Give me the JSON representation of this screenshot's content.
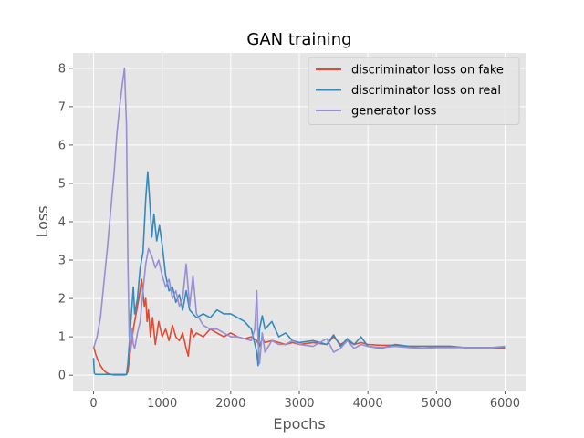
{
  "chart_data": {
    "type": "line",
    "title": "GAN training",
    "xlabel": "Epochs",
    "ylabel": "Loss",
    "xlim": [
      -300,
      6300
    ],
    "ylim": [
      -0.4,
      8.4
    ],
    "xticks": [
      0,
      1000,
      2000,
      3000,
      4000,
      5000,
      6000
    ],
    "yticks": [
      0,
      1,
      2,
      3,
      4,
      5,
      6,
      7,
      8
    ],
    "grid": true,
    "legend": "top-right",
    "background": "#e5e5e5",
    "series": [
      {
        "name": "discriminator loss on fake",
        "color": "#e24a33",
        "x": [
          0,
          30,
          60,
          100,
          150,
          200,
          250,
          300,
          350,
          400,
          450,
          480,
          500,
          520,
          550,
          580,
          620,
          660,
          700,
          740,
          760,
          780,
          800,
          830,
          860,
          900,
          950,
          1000,
          1050,
          1100,
          1150,
          1200,
          1250,
          1300,
          1350,
          1380,
          1420,
          1460,
          1500,
          1600,
          1700,
          1800,
          1900,
          2000,
          2100,
          2200,
          2300,
          2380,
          2420,
          2460,
          2500,
          2600,
          2700,
          2800,
          2900,
          3000,
          3200,
          3400,
          3500,
          3600,
          3700,
          3800,
          3900,
          4000,
          4200,
          4400,
          4600,
          4800,
          5000,
          5200,
          5400,
          5600,
          5800,
          6000
        ],
        "y": [
          0.75,
          0.55,
          0.4,
          0.25,
          0.12,
          0.05,
          0.02,
          0.01,
          0.01,
          0.01,
          0.01,
          0.02,
          0.1,
          0.4,
          0.8,
          1.2,
          1.6,
          2.0,
          2.5,
          1.8,
          2.0,
          1.4,
          1.7,
          1.0,
          1.5,
          0.8,
          1.4,
          1.0,
          1.2,
          0.9,
          1.3,
          1.0,
          0.9,
          1.1,
          0.7,
          0.5,
          1.2,
          1.0,
          1.1,
          1.0,
          1.2,
          1.1,
          1.0,
          1.1,
          1.0,
          0.95,
          1.0,
          0.9,
          0.75,
          0.95,
          0.85,
          0.9,
          0.85,
          0.8,
          0.85,
          0.8,
          0.85,
          0.8,
          1.0,
          0.8,
          0.9,
          0.8,
          0.85,
          0.8,
          0.78,
          0.78,
          0.75,
          0.75,
          0.75,
          0.75,
          0.72,
          0.72,
          0.72,
          0.7
        ]
      },
      {
        "name": "discriminator loss on real",
        "color": "#348abd",
        "x": [
          0,
          10,
          30,
          100,
          200,
          300,
          400,
          480,
          500,
          520,
          540,
          560,
          580,
          600,
          640,
          680,
          720,
          760,
          790,
          820,
          850,
          880,
          920,
          960,
          1000,
          1050,
          1100,
          1150,
          1200,
          1250,
          1300,
          1350,
          1400,
          1450,
          1500,
          1600,
          1700,
          1800,
          1900,
          2000,
          2100,
          2200,
          2300,
          2380,
          2400,
          2420,
          2460,
          2500,
          2600,
          2700,
          2800,
          2900,
          3000,
          3200,
          3400,
          3500,
          3600,
          3700,
          3800,
          3900,
          4000,
          4200,
          4400,
          4600,
          4800,
          5000,
          5200,
          5400,
          5600,
          5800,
          6000
        ],
        "y": [
          0.45,
          0.05,
          0.02,
          0.02,
          0.02,
          0.02,
          0.02,
          0.02,
          0.3,
          0.8,
          1.3,
          1.8,
          2.3,
          1.6,
          2.0,
          2.8,
          3.2,
          4.6,
          5.3,
          4.5,
          3.6,
          4.2,
          3.5,
          3.9,
          3.4,
          2.6,
          2.2,
          2.3,
          1.9,
          2.1,
          1.7,
          2.2,
          1.7,
          1.6,
          1.5,
          1.6,
          1.5,
          1.7,
          1.6,
          1.6,
          1.5,
          1.4,
          1.2,
          0.6,
          0.25,
          1.2,
          1.55,
          1.2,
          1.4,
          1.0,
          1.1,
          0.9,
          0.85,
          0.9,
          0.8,
          1.05,
          0.75,
          0.95,
          0.8,
          1.0,
          0.75,
          0.7,
          0.8,
          0.75,
          0.75,
          0.75,
          0.75,
          0.72,
          0.72,
          0.72,
          0.72
        ]
      },
      {
        "name": "generator loss",
        "color": "#988ed5",
        "x": [
          0,
          50,
          100,
          150,
          200,
          250,
          300,
          340,
          380,
          420,
          450,
          480,
          500,
          520,
          540,
          560,
          580,
          600,
          640,
          680,
          720,
          760,
          800,
          850,
          900,
          950,
          1000,
          1050,
          1100,
          1150,
          1200,
          1250,
          1300,
          1350,
          1400,
          1450,
          1500,
          1600,
          1700,
          1800,
          1900,
          2000,
          2100,
          2200,
          2300,
          2350,
          2380,
          2400,
          2420,
          2460,
          2500,
          2600,
          2700,
          2800,
          2900,
          3000,
          3200,
          3400,
          3500,
          3600,
          3700,
          3800,
          3900,
          4000,
          4200,
          4400,
          4600,
          4800,
          5000,
          5200,
          5400,
          5600,
          5800,
          6000
        ],
        "y": [
          0.7,
          1.0,
          1.5,
          2.4,
          3.3,
          4.3,
          5.3,
          6.3,
          7.0,
          7.6,
          8.0,
          6.5,
          3.0,
          1.0,
          0.6,
          1.2,
          0.8,
          0.7,
          1.1,
          1.4,
          2.2,
          2.9,
          3.3,
          3.1,
          2.8,
          3.0,
          2.6,
          2.3,
          2.5,
          2.0,
          2.2,
          1.8,
          2.0,
          2.9,
          1.8,
          2.6,
          1.6,
          1.3,
          1.2,
          1.2,
          1.1,
          1.0,
          1.0,
          0.95,
          0.9,
          1.2,
          2.2,
          0.9,
          0.3,
          1.1,
          0.6,
          0.9,
          0.8,
          0.8,
          0.9,
          0.8,
          0.75,
          0.95,
          0.6,
          0.7,
          0.9,
          0.7,
          0.8,
          0.75,
          0.72,
          0.75,
          0.72,
          0.7,
          0.72,
          0.72,
          0.72,
          0.72,
          0.72,
          0.75
        ]
      }
    ]
  }
}
